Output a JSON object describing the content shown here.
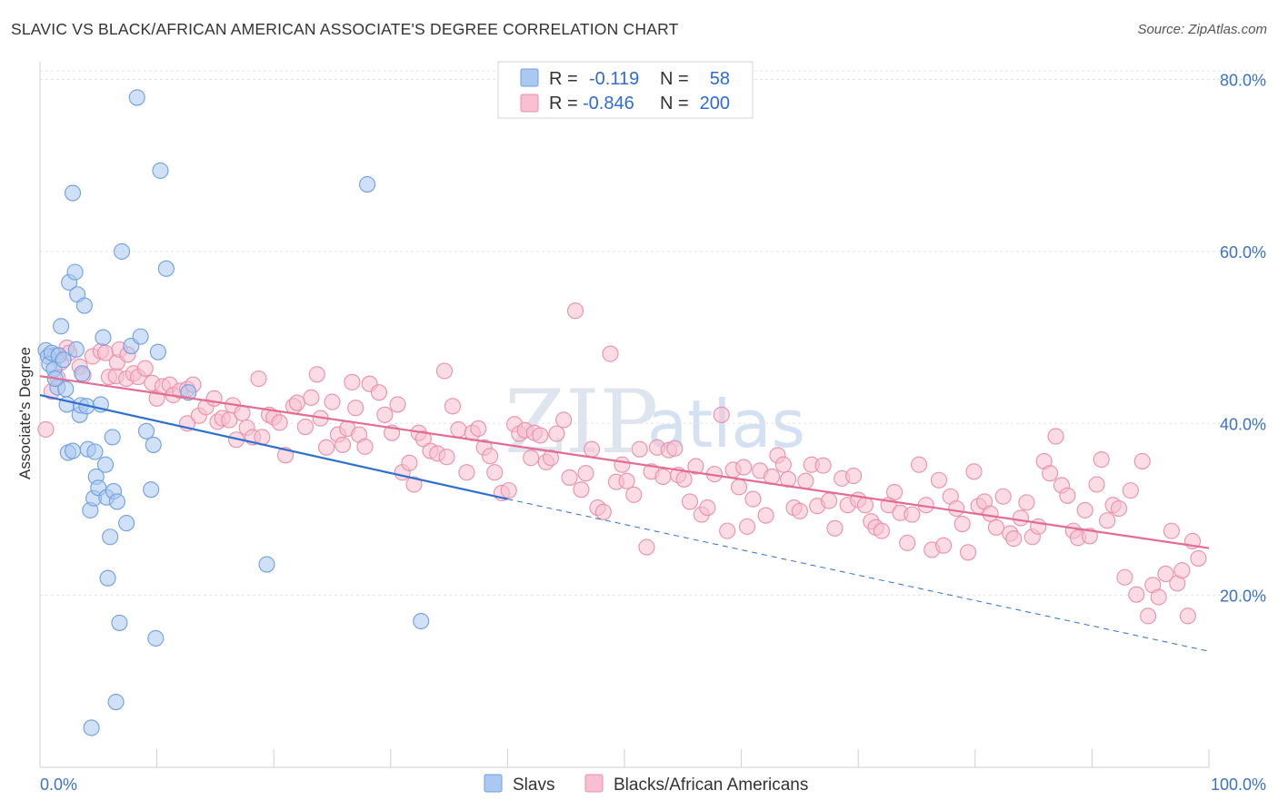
{
  "title": "SLAVIC VS BLACK/AFRICAN AMERICAN ASSOCIATE'S DEGREE CORRELATION CHART",
  "source": "Source: ZipAtlas.com",
  "watermark": {
    "zip": "ZIP",
    "atlas": "atlas"
  },
  "colors": {
    "slavs_fill": "#aac8f0",
    "slavs_stroke": "#6f9fdf",
    "slavs_line": "#2d6fd0",
    "black_fill": "#f7bfd0",
    "black_stroke": "#ea8fac",
    "black_line": "#e56b93",
    "tick_label": "#3a72c4",
    "grid": "#e3e3e3"
  },
  "legend": {
    "rows": [
      {
        "r_label": "R =",
        "r_value": "-0.119",
        "n_label": "N =",
        "n_value": "58"
      },
      {
        "r_label": "R =",
        "r_value": "-0.846",
        "n_label": "N =",
        "n_value": "200"
      }
    ]
  },
  "chart_data": {
    "type": "scatter",
    "title": "SLAVIC VS BLACK/AFRICAN AMERICAN ASSOCIATE'S DEGREE CORRELATION CHART",
    "xlabel": "",
    "ylabel": "Associate's Degree",
    "xlim": [
      0,
      100
    ],
    "ylim": [
      0,
      82
    ],
    "x_tick_labels": [
      "0.0%",
      "100.0%"
    ],
    "y_ticks": [
      20,
      40,
      60,
      80
    ],
    "y_tick_labels": [
      "20.0%",
      "40.0%",
      "60.0%",
      "80.0%"
    ],
    "grid": true,
    "legend_position": "top-center",
    "series": [
      {
        "name": "Slavs",
        "r": -0.119,
        "n": 58,
        "trend": {
          "x0": 0,
          "y0": 43.3,
          "x1": 40,
          "y1": 31.2,
          "dash_to_x": 100,
          "dash_to_y": 13.5
        },
        "points": [
          [
            0.5,
            48.5
          ],
          [
            0.7,
            47.8
          ],
          [
            0.8,
            46.9
          ],
          [
            1.0,
            48.2
          ],
          [
            1.2,
            46.3
          ],
          [
            1.5,
            44.2
          ],
          [
            1.6,
            47.9
          ],
          [
            1.8,
            51.3
          ],
          [
            2.0,
            47.4
          ],
          [
            2.2,
            44.0
          ],
          [
            2.3,
            42.2
          ],
          [
            2.4,
            36.6
          ],
          [
            2.5,
            56.4
          ],
          [
            2.8,
            36.8
          ],
          [
            2.8,
            66.8
          ],
          [
            3.0,
            57.6
          ],
          [
            3.2,
            55.0
          ],
          [
            3.4,
            41.0
          ],
          [
            3.5,
            42.1
          ],
          [
            3.6,
            45.8
          ],
          [
            3.8,
            53.7
          ],
          [
            4.0,
            42.0
          ],
          [
            4.1,
            37.0
          ],
          [
            4.3,
            29.9
          ],
          [
            4.6,
            31.3
          ],
          [
            4.7,
            36.7
          ],
          [
            4.8,
            33.8
          ],
          [
            5.0,
            32.5
          ],
          [
            5.2,
            42.2
          ],
          [
            5.4,
            50.0
          ],
          [
            5.6,
            35.2
          ],
          [
            5.7,
            31.4
          ],
          [
            5.8,
            22.0
          ],
          [
            6.0,
            26.8
          ],
          [
            6.2,
            38.4
          ],
          [
            6.3,
            32.1
          ],
          [
            6.5,
            7.6
          ],
          [
            6.6,
            30.9
          ],
          [
            6.8,
            16.8
          ],
          [
            7.4,
            28.4
          ],
          [
            7.8,
            49.0
          ],
          [
            8.3,
            77.9
          ],
          [
            8.6,
            50.1
          ],
          [
            9.1,
            39.1
          ],
          [
            9.5,
            32.3
          ],
          [
            9.7,
            37.5
          ],
          [
            9.9,
            15.0
          ],
          [
            10.1,
            48.3
          ],
          [
            10.3,
            69.4
          ],
          [
            10.8,
            58.0
          ],
          [
            12.7,
            43.6
          ],
          [
            19.4,
            23.6
          ],
          [
            28.0,
            67.8
          ],
          [
            32.6,
            17.0
          ],
          [
            4.4,
            4.6
          ],
          [
            7.0,
            60.0
          ],
          [
            1.3,
            45.2
          ],
          [
            3.1,
            48.6
          ]
        ]
      },
      {
        "name": "Blacks/African Americans",
        "r": -0.846,
        "n": 200,
        "trend": {
          "x0": 0,
          "y0": 45.5,
          "x1": 100,
          "y1": 25.5
        },
        "points": [
          [
            0.5,
            39.3
          ],
          [
            1.0,
            43.7
          ],
          [
            1.3,
            47.9
          ],
          [
            1.5,
            45.3
          ],
          [
            1.8,
            47.1
          ],
          [
            2.3,
            48.8
          ],
          [
            2.5,
            48.2
          ],
          [
            3.4,
            46.6
          ],
          [
            3.7,
            45.6
          ],
          [
            4.5,
            47.8
          ],
          [
            5.2,
            48.4
          ],
          [
            5.6,
            48.2
          ],
          [
            5.9,
            45.4
          ],
          [
            6.5,
            45.5
          ],
          [
            6.6,
            47.1
          ],
          [
            6.8,
            48.6
          ],
          [
            7.4,
            45.2
          ],
          [
            7.5,
            48.0
          ],
          [
            8.0,
            45.8
          ],
          [
            8.4,
            45.4
          ],
          [
            9.0,
            46.4
          ],
          [
            9.6,
            44.7
          ],
          [
            10.0,
            42.9
          ],
          [
            10.5,
            44.3
          ],
          [
            11.1,
            44.5
          ],
          [
            11.4,
            43.3
          ],
          [
            12.0,
            43.8
          ],
          [
            12.6,
            40.0
          ],
          [
            12.6,
            44.0
          ],
          [
            13.1,
            44.5
          ],
          [
            13.6,
            40.9
          ],
          [
            14.2,
            41.9
          ],
          [
            14.9,
            42.9
          ],
          [
            15.2,
            40.2
          ],
          [
            15.6,
            40.6
          ],
          [
            16.2,
            40.4
          ],
          [
            16.5,
            42.1
          ],
          [
            16.8,
            38.1
          ],
          [
            17.3,
            41.2
          ],
          [
            17.7,
            39.5
          ],
          [
            18.2,
            38.4
          ],
          [
            18.7,
            45.2
          ],
          [
            19.0,
            38.4
          ],
          [
            19.6,
            41.0
          ],
          [
            20.0,
            40.7
          ],
          [
            20.5,
            40.1
          ],
          [
            21.0,
            36.3
          ],
          [
            21.7,
            42.0
          ],
          [
            22.0,
            42.4
          ],
          [
            22.7,
            39.6
          ],
          [
            23.2,
            43.0
          ],
          [
            23.7,
            45.7
          ],
          [
            24.0,
            40.6
          ],
          [
            24.5,
            37.2
          ],
          [
            25.0,
            42.5
          ],
          [
            25.5,
            38.7
          ],
          [
            25.9,
            37.5
          ],
          [
            26.3,
            39.4
          ],
          [
            26.7,
            44.8
          ],
          [
            27.0,
            41.8
          ],
          [
            27.3,
            38.7
          ],
          [
            27.8,
            37.3
          ],
          [
            28.2,
            44.6
          ],
          [
            29.0,
            43.6
          ],
          [
            29.5,
            41.0
          ],
          [
            30.1,
            38.9
          ],
          [
            30.6,
            42.2
          ],
          [
            31.0,
            34.3
          ],
          [
            31.6,
            35.4
          ],
          [
            32.0,
            32.9
          ],
          [
            32.4,
            38.9
          ],
          [
            32.8,
            38.2
          ],
          [
            33.4,
            36.8
          ],
          [
            34.0,
            36.5
          ],
          [
            34.6,
            46.1
          ],
          [
            34.8,
            36.1
          ],
          [
            35.3,
            42.0
          ],
          [
            35.8,
            39.3
          ],
          [
            36.5,
            34.3
          ],
          [
            37.0,
            38.9
          ],
          [
            37.5,
            39.4
          ],
          [
            38.0,
            37.2
          ],
          [
            38.5,
            36.2
          ],
          [
            38.9,
            34.3
          ],
          [
            39.5,
            31.9
          ],
          [
            40.1,
            32.2
          ],
          [
            40.6,
            39.9
          ],
          [
            41.0,
            38.8
          ],
          [
            41.5,
            39.2
          ],
          [
            42.0,
            36.0
          ],
          [
            42.3,
            38.9
          ],
          [
            42.8,
            38.6
          ],
          [
            43.3,
            35.5
          ],
          [
            43.7,
            36.0
          ],
          [
            44.2,
            38.8
          ],
          [
            44.8,
            40.4
          ],
          [
            45.3,
            33.7
          ],
          [
            45.8,
            53.1
          ],
          [
            46.3,
            32.3
          ],
          [
            46.7,
            34.2
          ],
          [
            47.2,
            37.0
          ],
          [
            47.7,
            30.2
          ],
          [
            48.2,
            29.7
          ],
          [
            48.8,
            48.1
          ],
          [
            49.3,
            33.2
          ],
          [
            49.8,
            35.2
          ],
          [
            50.2,
            33.3
          ],
          [
            50.8,
            31.7
          ],
          [
            51.3,
            37.0
          ],
          [
            51.9,
            25.6
          ],
          [
            52.3,
            34.4
          ],
          [
            52.8,
            37.2
          ],
          [
            53.3,
            33.8
          ],
          [
            53.8,
            36.9
          ],
          [
            54.3,
            37.1
          ],
          [
            54.6,
            34.0
          ],
          [
            55.1,
            33.5
          ],
          [
            55.6,
            30.9
          ],
          [
            56.1,
            35.0
          ],
          [
            56.6,
            29.4
          ],
          [
            57.1,
            30.2
          ],
          [
            57.7,
            34.1
          ],
          [
            58.3,
            41.0
          ],
          [
            58.8,
            27.5
          ],
          [
            59.3,
            34.6
          ],
          [
            59.8,
            32.6
          ],
          [
            60.2,
            34.9
          ],
          [
            60.5,
            28.0
          ],
          [
            61.0,
            31.2
          ],
          [
            61.6,
            34.5
          ],
          [
            62.1,
            29.3
          ],
          [
            62.6,
            33.8
          ],
          [
            63.1,
            36.3
          ],
          [
            63.6,
            35.2
          ],
          [
            64.0,
            33.5
          ],
          [
            64.5,
            30.2
          ],
          [
            65.0,
            29.8
          ],
          [
            65.5,
            33.3
          ],
          [
            66.0,
            35.2
          ],
          [
            66.5,
            30.4
          ],
          [
            67.0,
            35.1
          ],
          [
            67.5,
            31.0
          ],
          [
            68.0,
            27.8
          ],
          [
            68.6,
            33.6
          ],
          [
            69.1,
            30.5
          ],
          [
            69.6,
            33.9
          ],
          [
            70.0,
            31.1
          ],
          [
            70.6,
            30.5
          ],
          [
            71.1,
            28.6
          ],
          [
            71.5,
            27.9
          ],
          [
            72.0,
            27.5
          ],
          [
            72.6,
            30.5
          ],
          [
            73.1,
            32.0
          ],
          [
            73.6,
            29.6
          ],
          [
            74.2,
            26.1
          ],
          [
            74.6,
            29.4
          ],
          [
            75.2,
            35.2
          ],
          [
            75.8,
            30.5
          ],
          [
            76.3,
            25.3
          ],
          [
            76.9,
            33.4
          ],
          [
            77.3,
            25.8
          ],
          [
            77.9,
            31.5
          ],
          [
            78.4,
            30.1
          ],
          [
            78.9,
            28.3
          ],
          [
            79.4,
            25.0
          ],
          [
            79.9,
            34.4
          ],
          [
            80.3,
            30.4
          ],
          [
            80.8,
            30.9
          ],
          [
            81.3,
            29.5
          ],
          [
            81.8,
            27.9
          ],
          [
            82.4,
            31.5
          ],
          [
            83.0,
            27.2
          ],
          [
            83.3,
            26.6
          ],
          [
            83.9,
            29.0
          ],
          [
            84.4,
            30.8
          ],
          [
            84.9,
            26.8
          ],
          [
            85.4,
            28.0
          ],
          [
            85.9,
            35.6
          ],
          [
            86.4,
            34.2
          ],
          [
            86.9,
            38.5
          ],
          [
            87.4,
            32.8
          ],
          [
            87.9,
            31.6
          ],
          [
            88.4,
            27.5
          ],
          [
            88.8,
            26.7
          ],
          [
            89.4,
            29.9
          ],
          [
            89.8,
            26.9
          ],
          [
            90.4,
            32.9
          ],
          [
            90.8,
            35.8
          ],
          [
            91.3,
            28.7
          ],
          [
            91.8,
            30.5
          ],
          [
            92.3,
            30.1
          ],
          [
            92.8,
            22.1
          ],
          [
            93.3,
            32.2
          ],
          [
            93.8,
            20.1
          ],
          [
            94.3,
            35.6
          ],
          [
            94.8,
            17.6
          ],
          [
            95.2,
            21.2
          ],
          [
            95.7,
            19.8
          ],
          [
            96.3,
            22.5
          ],
          [
            96.8,
            27.5
          ],
          [
            97.3,
            21.4
          ],
          [
            97.7,
            22.9
          ],
          [
            98.2,
            17.6
          ],
          [
            98.6,
            26.3
          ],
          [
            99.1,
            24.3
          ]
        ]
      }
    ]
  },
  "bottom_legend": [
    "Slavs",
    "Blacks/African Americans"
  ]
}
